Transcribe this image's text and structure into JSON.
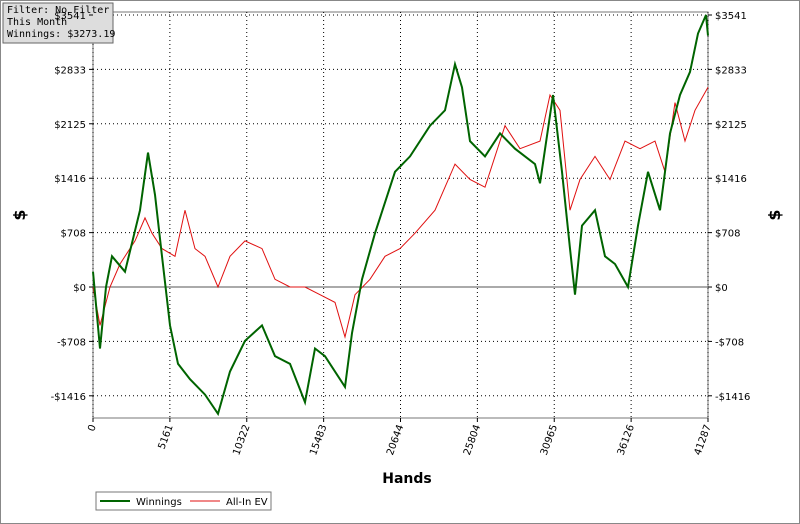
{
  "chart_data": {
    "type": "line",
    "info_box": [
      "Filter: No Filter",
      "This Month",
      "Winnings: $3273.19"
    ],
    "x_label": "Hands",
    "y_label": "$",
    "y2_label": "$",
    "xlim": [
      0,
      41287
    ],
    "xticks": [
      0,
      5161,
      10322,
      15483,
      20644,
      25804,
      30965,
      36126,
      41287
    ],
    "ylim": [
      -1705,
      3580
    ],
    "yticks": [
      {
        "value": -1416,
        "label": "-$1416"
      },
      {
        "value": -708,
        "label": "-$708"
      },
      {
        "value": 0,
        "label": "$0"
      },
      {
        "value": 708,
        "label": "$708"
      },
      {
        "value": 1416,
        "label": "$1416"
      },
      {
        "value": 2125,
        "label": "$2125"
      },
      {
        "value": 2833,
        "label": "$2833"
      },
      {
        "value": 3541,
        "label": "$3541"
      }
    ],
    "grid": true,
    "legend": "bottom-left",
    "series": [
      {
        "name": "Winnings",
        "color": "#006400",
        "x": [
          0,
          470,
          873,
          1276,
          2148,
          3155,
          3692,
          4162,
          4632,
          5169,
          5706,
          6512,
          7519,
          8391,
          9197,
          10204,
          11345,
          12218,
          13225,
          14232,
          14903,
          15575,
          16917,
          17387,
          18059,
          18931,
          20274,
          21281,
          22624,
          23630,
          24302,
          24772,
          25309,
          26316,
          27323,
          28330,
          29672,
          30008,
          30880,
          31484,
          32021,
          32357,
          32827,
          33700,
          34371,
          35042,
          35915,
          36586,
          37257,
          38063,
          38734,
          39406,
          40077,
          40614,
          41152,
          41287
        ],
        "values": [
          200,
          -800,
          0,
          400,
          200,
          1000,
          1750,
          1200,
          400,
          -500,
          -1000,
          -1200,
          -1400,
          -1650,
          -1100,
          -700,
          -500,
          -900,
          -1000,
          -1500,
          -800,
          -900,
          -1300,
          -600,
          100,
          700,
          1500,
          1700,
          2100,
          2300,
          2900,
          2600,
          1900,
          1700,
          2000,
          1800,
          1600,
          1350,
          2500,
          1500,
          500,
          -100,
          800,
          1000,
          400,
          300,
          0,
          800,
          1500,
          1000,
          2000,
          2500,
          2800,
          3300,
          3541,
          3273
        ]
      },
      {
        "name": "All-In EV",
        "color": "#e01010",
        "x": [
          0,
          470,
          1141,
          1813,
          2819,
          3491,
          3961,
          4632,
          5505,
          6176,
          6847,
          7519,
          8391,
          9197,
          10204,
          11345,
          12218,
          13225,
          14232,
          15239,
          16246,
          16917,
          17588,
          18595,
          19602,
          20609,
          21616,
          22959,
          24302,
          25309,
          26316,
          27658,
          28665,
          30008,
          30679,
          31350,
          32021,
          32693,
          33700,
          34707,
          35713,
          36720,
          37727,
          38398,
          39070,
          39741,
          40412,
          41287
        ],
        "values": [
          0,
          -500,
          0,
          300,
          600,
          900,
          700,
          500,
          400,
          1000,
          500,
          400,
          0,
          400,
          600,
          500,
          100,
          0,
          0,
          -100,
          -200,
          -650,
          -100,
          100,
          400,
          500,
          700,
          1000,
          1600,
          1400,
          1300,
          2100,
          1800,
          1900,
          2500,
          2300,
          1000,
          1400,
          1700,
          1400,
          1900,
          1800,
          1900,
          1500,
          2400,
          1900,
          2300,
          2600
        ]
      }
    ]
  }
}
